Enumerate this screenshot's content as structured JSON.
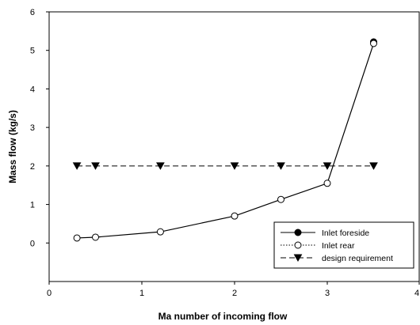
{
  "chart_data": {
    "type": "line",
    "xlabel": "Ma number of incoming flow",
    "ylabel": "Mass flow (kg/s)",
    "xlim": [
      0,
      4
    ],
    "ylim": [
      -1,
      6
    ],
    "xticks": [
      "0",
      "1",
      "2",
      "3",
      "4"
    ],
    "yticks": [
      "0",
      "1",
      "2",
      "3",
      "4",
      "5",
      "6"
    ],
    "legend_position": "bottom-right",
    "series": [
      {
        "name": "Inlet foreside",
        "line": "solid",
        "marker": "filled-circle",
        "x": [
          3.5
        ],
        "y": [
          5.22
        ]
      },
      {
        "name": "Inlet rear",
        "line": "dotted",
        "marker": "open-circle",
        "x": [
          0.3,
          0.5,
          1.2,
          2.0,
          2.5,
          3.0,
          3.5
        ],
        "y": [
          0.13,
          0.15,
          0.29,
          0.7,
          1.13,
          1.55,
          5.18
        ]
      },
      {
        "name": "design requirement",
        "line": "dashed",
        "marker": "filled-triangle-down",
        "x": [
          0.3,
          0.5,
          1.2,
          2.0,
          2.5,
          3.0,
          3.5
        ],
        "y": [
          2,
          2,
          2,
          2,
          2,
          2,
          2
        ]
      }
    ],
    "colors": {
      "line": "#000000",
      "background": "#ffffff"
    }
  }
}
